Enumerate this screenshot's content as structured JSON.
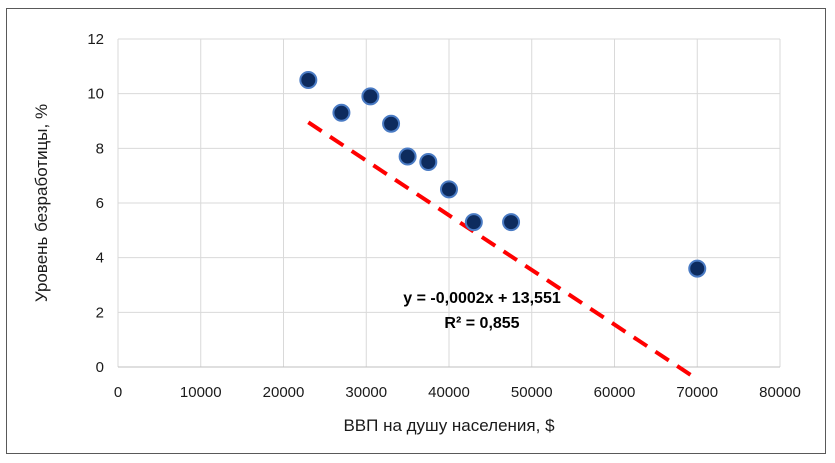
{
  "chart_data": {
    "type": "scatter",
    "xlabel": "ВВП на душу населения, $",
    "ylabel": "Уровень безработицы, %",
    "xlim": [
      0,
      80000
    ],
    "ylim": [
      0,
      12
    ],
    "xticks": [
      "0",
      "10000",
      "20000",
      "30000",
      "40000",
      "50000",
      "60000",
      "70000",
      "80000"
    ],
    "yticks": [
      "0",
      "2",
      "4",
      "6",
      "8",
      "10",
      "12"
    ],
    "grid": true,
    "legend": "none",
    "series": [
      {
        "points": [
          {
            "x": 23000,
            "y": 10.5
          },
          {
            "x": 27000,
            "y": 9.3
          },
          {
            "x": 30500,
            "y": 9.9
          },
          {
            "x": 33000,
            "y": 8.9
          },
          {
            "x": 35000,
            "y": 7.7
          },
          {
            "x": 37500,
            "y": 7.5
          },
          {
            "x": 40000,
            "y": 6.5
          },
          {
            "x": 43000,
            "y": 5.3
          },
          {
            "x": 47500,
            "y": 5.3
          },
          {
            "x": 70000,
            "y": 3.6
          }
        ],
        "marker_color": "#0d2b5e",
        "marker_edge_color": "#4a7bc4"
      }
    ],
    "trendline": {
      "type": "linear",
      "slope": -0.0002,
      "intercept": 13.551,
      "x_range": [
        23000,
        70000
      ],
      "color": "#ff0000",
      "style": "dashed",
      "equation": "y = -0,0002x + 13,551",
      "r_squared": "R² = 0,855"
    }
  }
}
